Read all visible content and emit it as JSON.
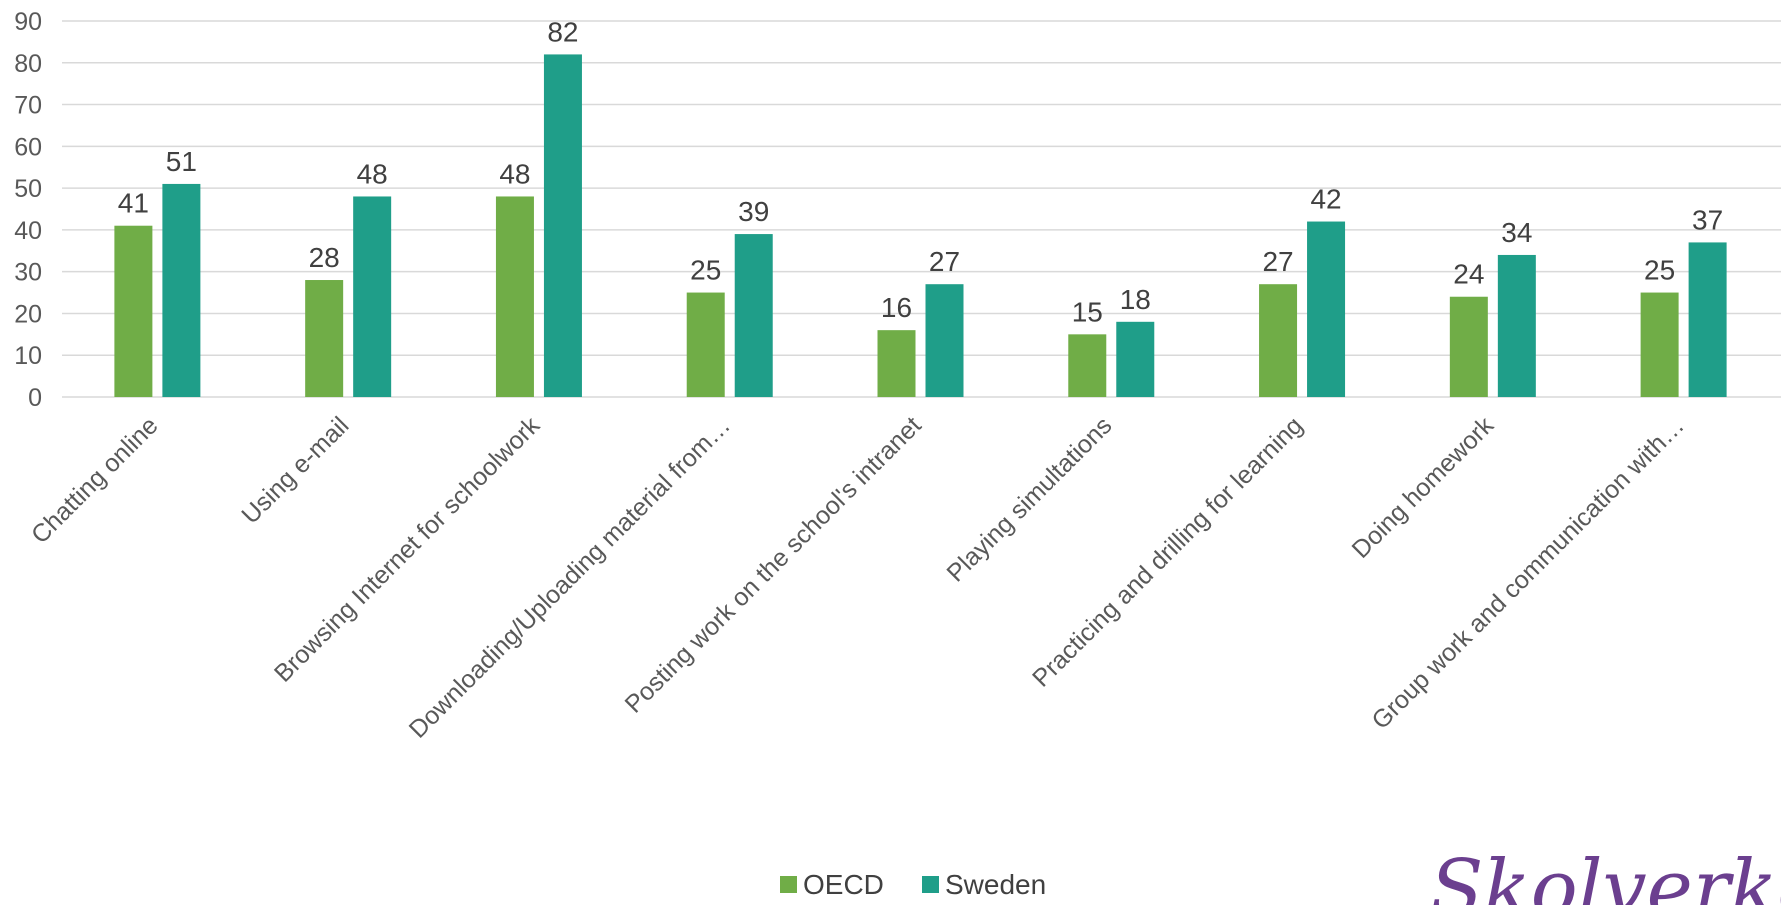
{
  "chart_data": {
    "type": "bar",
    "categories": [
      "Chatting online",
      "Using e-mail",
      "Browsing Internet for schoolwork",
      "Downloading/Uploading material from…",
      "Posting work on the school's intranet",
      "Playing simultations",
      "Practicing and drilling for learning",
      "Doing homework",
      "Group work and communication with…"
    ],
    "series": [
      {
        "name": "OECD",
        "color": "#70ad47",
        "values": [
          41,
          28,
          48,
          25,
          16,
          15,
          27,
          24,
          25
        ]
      },
      {
        "name": "Sweden",
        "color": "#1f9e89",
        "values": [
          51,
          48,
          82,
          39,
          27,
          18,
          42,
          34,
          37
        ]
      }
    ],
    "ylim": [
      0,
      90
    ],
    "yticks": [
      0,
      10,
      20,
      30,
      40,
      50,
      60,
      70,
      80,
      90
    ],
    "grid": true,
    "legend": "bottom-center",
    "data_labels": true
  },
  "watermark_text": "Skolverket"
}
